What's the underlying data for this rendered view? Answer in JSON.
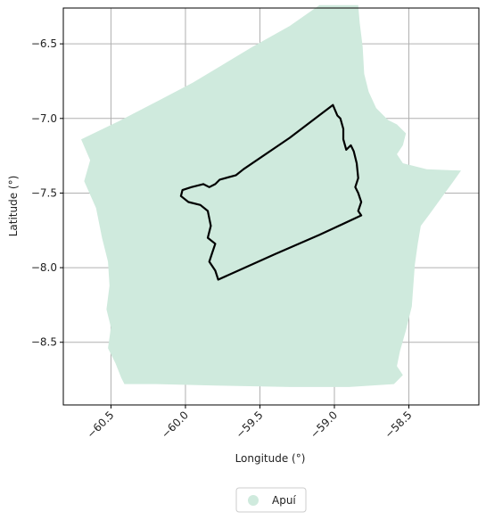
{
  "chart_data": {
    "type": "map",
    "xlabel": "Longitude (°)",
    "ylabel": "Latitude (°)",
    "xlim": [
      -60.82,
      -58.03
    ],
    "ylim": [
      -8.92,
      -6.26
    ],
    "xticks": [
      -60.5,
      -60.0,
      -59.5,
      -59.0,
      -58.5
    ],
    "xtick_labels": [
      "−60.5",
      "−60.0",
      "−59.5",
      "−59.0",
      "−58.5"
    ],
    "yticks": [
      -6.5,
      -7.0,
      -7.5,
      -8.0,
      -8.5
    ],
    "ytick_labels": [
      "−6.5",
      "−7.0",
      "−7.5",
      "−8.0",
      "−8.5"
    ],
    "grid": true,
    "legend": {
      "position": "bottom-center",
      "entries": [
        {
          "label": "Apuí",
          "color": "#cfeadd"
        }
      ]
    },
    "colors": {
      "region_fill": "#cfeadd",
      "boundary": "#000000",
      "grid": "#b0b0b0"
    },
    "region": {
      "name": "Apuí",
      "polygon": [
        [
          -60.7,
          -7.14
        ],
        [
          -60.45,
          -7.02
        ],
        [
          -60.18,
          -6.88
        ],
        [
          -59.95,
          -6.76
        ],
        [
          -59.75,
          -6.64
        ],
        [
          -59.55,
          -6.52
        ],
        [
          -59.3,
          -6.38
        ],
        [
          -59.1,
          -6.24
        ],
        [
          -58.84,
          -6.24
        ],
        [
          -58.83,
          -6.36
        ],
        [
          -58.81,
          -6.52
        ],
        [
          -58.8,
          -6.7
        ],
        [
          -58.77,
          -6.82
        ],
        [
          -58.72,
          -6.93
        ],
        [
          -58.64,
          -7.01
        ],
        [
          -58.58,
          -7.04
        ],
        [
          -58.52,
          -7.1
        ],
        [
          -58.54,
          -7.18
        ],
        [
          -58.58,
          -7.24
        ],
        [
          -58.54,
          -7.3
        ],
        [
          -58.38,
          -7.34
        ],
        [
          -58.15,
          -7.35
        ],
        [
          -58.2,
          -7.42
        ],
        [
          -58.28,
          -7.53
        ],
        [
          -58.36,
          -7.64
        ],
        [
          -58.42,
          -7.72
        ],
        [
          -58.44,
          -7.84
        ],
        [
          -58.46,
          -7.98
        ],
        [
          -58.47,
          -8.12
        ],
        [
          -58.48,
          -8.26
        ],
        [
          -58.52,
          -8.42
        ],
        [
          -58.56,
          -8.56
        ],
        [
          -58.58,
          -8.66
        ],
        [
          -58.54,
          -8.72
        ],
        [
          -58.6,
          -8.78
        ],
        [
          -58.9,
          -8.8
        ],
        [
          -59.3,
          -8.8
        ],
        [
          -59.8,
          -8.79
        ],
        [
          -60.2,
          -8.78
        ],
        [
          -60.41,
          -8.78
        ],
        [
          -60.43,
          -8.74
        ],
        [
          -60.47,
          -8.64
        ],
        [
          -60.52,
          -8.54
        ],
        [
          -60.5,
          -8.4
        ],
        [
          -60.53,
          -8.28
        ],
        [
          -60.51,
          -8.12
        ],
        [
          -60.52,
          -7.96
        ],
        [
          -60.56,
          -7.8
        ],
        [
          -60.6,
          -7.6
        ],
        [
          -60.68,
          -7.42
        ],
        [
          -60.64,
          -7.28
        ],
        [
          -60.7,
          -7.14
        ]
      ]
    },
    "boundary": {
      "polygon": [
        [
          -59.01,
          -6.91
        ],
        [
          -58.98,
          -6.98
        ],
        [
          -58.96,
          -7.0
        ],
        [
          -58.94,
          -7.07
        ],
        [
          -58.94,
          -7.14
        ],
        [
          -58.92,
          -7.21
        ],
        [
          -58.89,
          -7.18
        ],
        [
          -58.87,
          -7.22
        ],
        [
          -58.85,
          -7.3
        ],
        [
          -58.84,
          -7.4
        ],
        [
          -58.86,
          -7.46
        ],
        [
          -58.84,
          -7.5
        ],
        [
          -58.82,
          -7.56
        ],
        [
          -58.84,
          -7.62
        ],
        [
          -58.82,
          -7.65
        ],
        [
          -59.1,
          -7.78
        ],
        [
          -59.4,
          -7.91
        ],
        [
          -59.78,
          -8.08
        ],
        [
          -59.8,
          -8.02
        ],
        [
          -59.84,
          -7.96
        ],
        [
          -59.82,
          -7.9
        ],
        [
          -59.8,
          -7.84
        ],
        [
          -59.85,
          -7.8
        ],
        [
          -59.83,
          -7.72
        ],
        [
          -59.85,
          -7.62
        ],
        [
          -59.9,
          -7.58
        ],
        [
          -59.98,
          -7.56
        ],
        [
          -60.03,
          -7.52
        ],
        [
          -60.02,
          -7.48
        ],
        [
          -59.96,
          -7.46
        ],
        [
          -59.88,
          -7.44
        ],
        [
          -59.84,
          -7.46
        ],
        [
          -59.8,
          -7.44
        ],
        [
          -59.77,
          -7.41
        ],
        [
          -59.66,
          -7.38
        ],
        [
          -59.61,
          -7.34
        ],
        [
          -59.3,
          -7.13
        ],
        [
          -59.01,
          -6.91
        ]
      ]
    }
  }
}
